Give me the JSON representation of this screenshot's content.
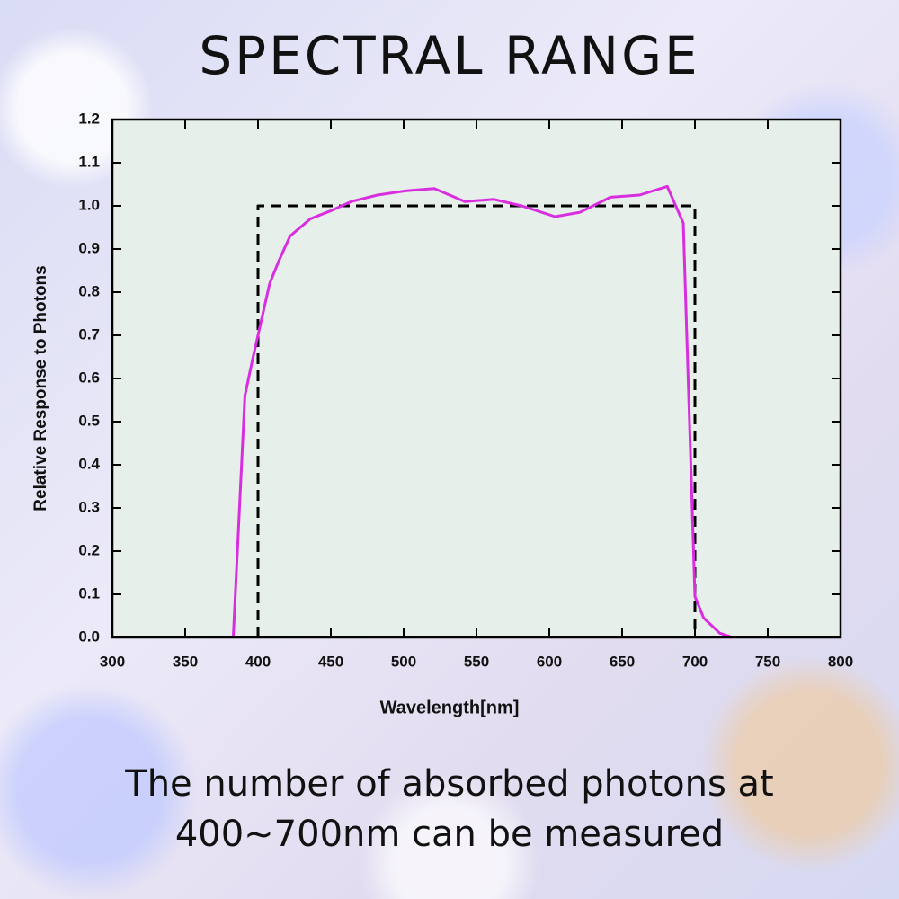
{
  "title": "SPECTRAL RANGE",
  "caption": [
    "The number of absorbed photons at",
    "400~700nm can be measured"
  ],
  "chart_data": {
    "type": "line",
    "x_label": "Wavelength[nm]",
    "y_label": "Relative Response to Photons",
    "xlim": [
      300,
      800
    ],
    "xticks": [
      300,
      350,
      400,
      450,
      500,
      550,
      600,
      650,
      700,
      750,
      800
    ],
    "ylim": [
      0,
      1.2
    ],
    "yticks": [
      {
        "value": 0,
        "label": "0.0"
      },
      0.1,
      0.2,
      0.3,
      0.4,
      0.5,
      0.6,
      0.7,
      0.8,
      0.9,
      {
        "value": 1,
        "label": "1.0"
      },
      1.1,
      1.2
    ],
    "plot_background": "#e6efe9",
    "series": [
      {
        "color": "#d82ee0",
        "style": "solid",
        "x": [
          383,
          391,
          396,
          402,
          408,
          414,
          422,
          436,
          451,
          464,
          482,
          502,
          521,
          542,
          562,
          581,
          604,
          621,
          642,
          662,
          681,
          692,
          700,
          706,
          717,
          726
        ],
        "values": [
          0,
          0.56,
          0.64,
          0.73,
          0.82,
          0.87,
          0.93,
          0.97,
          0.99,
          1.01,
          1.025,
          1.035,
          1.04,
          1.01,
          1.015,
          1.0,
          0.975,
          0.985,
          1.02,
          1.025,
          1.045,
          0.96,
          0.095,
          0.045,
          0.01,
          0
        ]
      },
      {
        "color": "#000000",
        "style": "dashed",
        "x": [
          400,
          400,
          700,
          700
        ],
        "values": [
          0,
          1,
          1,
          0
        ]
      }
    ]
  }
}
